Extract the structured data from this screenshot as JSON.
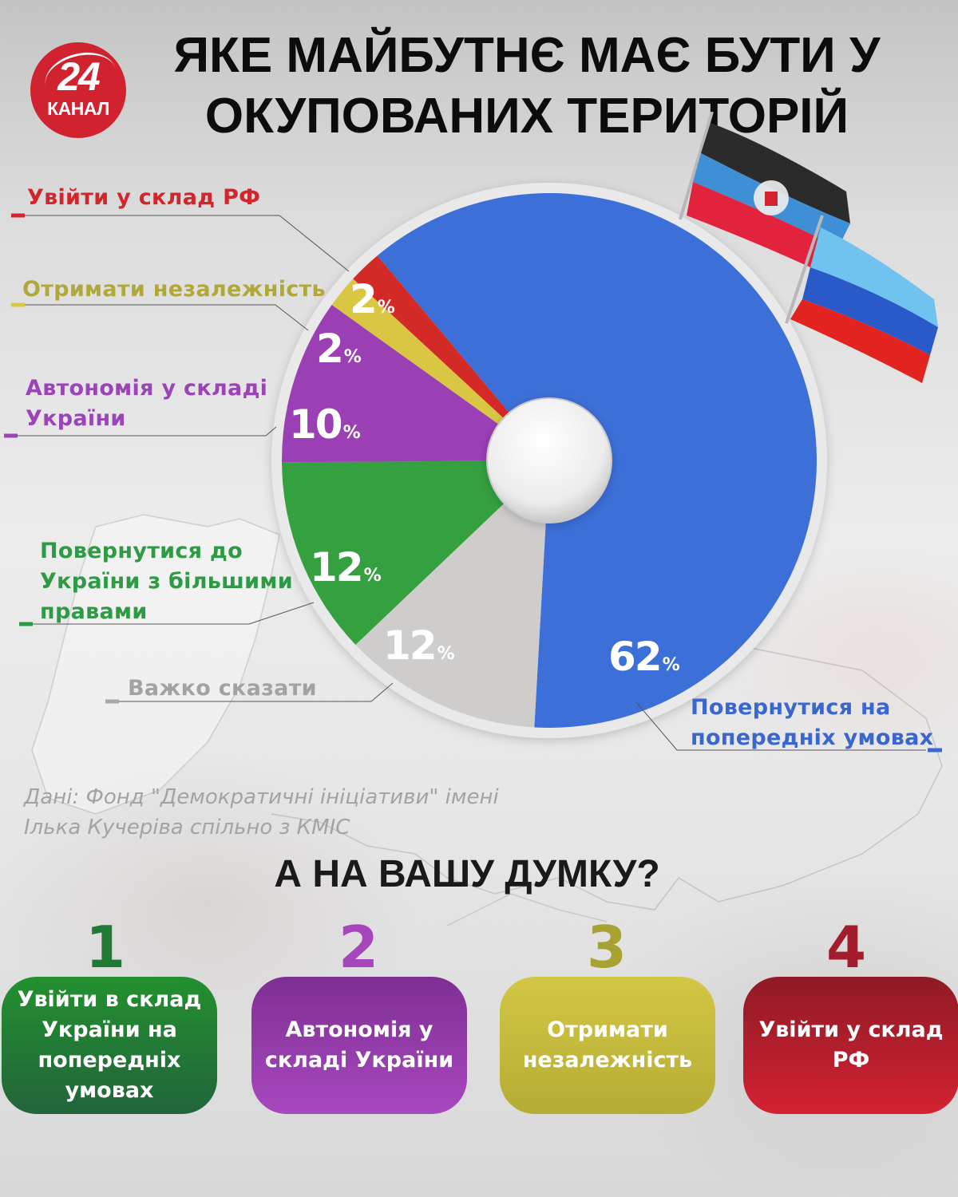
{
  "header": {
    "logo": {
      "number": "24",
      "word": "КАНАЛ",
      "color": "#d1232f"
    },
    "title_line1": "ЯКЕ МАЙБУТНЄ МАЄ БУТИ У",
    "title_line2": "ОКУПОВАНИХ ТЕРИТОРІЙ"
  },
  "chart_data": {
    "type": "pie",
    "style": "donut-with-small-hole",
    "title": "ЯКЕ МАЙБУТНЄ МАЄ БУТИ У ОКУПОВАНИХ ТЕРИТОРІЙ",
    "unit": "%",
    "start_angle_deg": -40,
    "direction": "clockwise",
    "slices": [
      {
        "label": "Повернутися на попередніх умовах",
        "value": 62,
        "color": "#3d6fd9",
        "text_color": "#3a66cf"
      },
      {
        "label": "Важко сказати",
        "value": 12,
        "color": "#cfcdcc",
        "text_color": "#a0a0a0"
      },
      {
        "label": "Повернутися до України з більшими правами",
        "value": 12,
        "color": "#35a040",
        "text_color": "#2f9a45"
      },
      {
        "label": "Автономія у складі України",
        "value": 10,
        "color": "#9b3fb5",
        "text_color": "#9a44b8"
      },
      {
        "label": "Отримати незалежність",
        "value": 2,
        "color": "#d9c743",
        "text_color": "#b0a83a"
      },
      {
        "label": "Увійти у склад РФ",
        "value": 2,
        "color": "#d42a27",
        "text_color": "#d1262c"
      }
    ]
  },
  "labels": {
    "rf": "Увійти у склад РФ",
    "independence": "Отримати незалежність",
    "autonomy_l1": "Автономія у складі",
    "autonomy_l2": "України",
    "more_rights_l1": "Повернутися до",
    "more_rights_l2": "України з більшими",
    "more_rights_l3": "правами",
    "hard_to_say": "Важко сказати",
    "previous_l1": "Повернутися на",
    "previous_l2": "попередніх умовах"
  },
  "pct_labels": {
    "rf": "2",
    "independence": "2",
    "autonomy": "10",
    "more_rights": "12",
    "hard_to_say": "12",
    "previous": "62",
    "sign": "%"
  },
  "source": {
    "line1": "Дані: Фонд \"Демократичні ініціативи\" імені",
    "line2": "Ілька Кучеріва спільно з КМІС"
  },
  "poll": {
    "question": "А НА ВАШУ ДУМКУ?",
    "options": [
      {
        "number": "1",
        "label": "Увійти в склад України на попередніх умовах",
        "number_color": "#1f7a33",
        "top": "#23902f",
        "bottom": "#22653a"
      },
      {
        "number": "2",
        "label": "Автономія у складі України",
        "number_color": "#a646bd",
        "top": "#7e2f93",
        "bottom": "#a848bf"
      },
      {
        "number": "3",
        "label": "Отримати незалежність",
        "number_color": "#a8a232",
        "top": "#d3c645",
        "bottom": "#b4ad34"
      },
      {
        "number": "4",
        "label": "Увійти у склад РФ",
        "number_color": "#a31d2c",
        "top": "#8f1a25",
        "bottom": "#d42232"
      }
    ]
  }
}
